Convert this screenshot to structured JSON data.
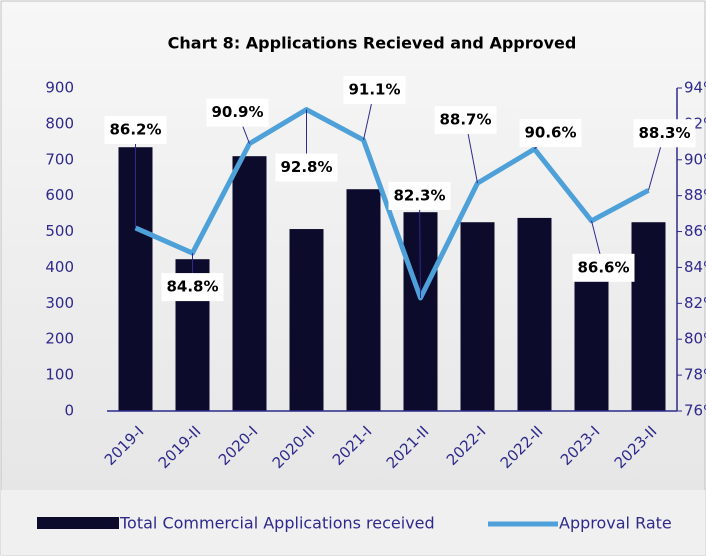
{
  "chart_data": {
    "type": "bar-line",
    "title": "Chart 8: Applications Recieved and Approved",
    "categories": [
      "2019-I",
      "2019-II",
      "2020-I",
      "2020-II",
      "2021-I",
      "2021-II",
      "2022-I",
      "2022-II",
      "2023-I",
      "2023-II"
    ],
    "series": [
      {
        "name": "Total Commercial Applications received",
        "type": "bar",
        "color": "#0d0b2b",
        "values": [
          735,
          423,
          710,
          507,
          618,
          554,
          526,
          538,
          426,
          526
        ]
      },
      {
        "name": "Approval Rate",
        "type": "line",
        "axis": "y2",
        "color": "#4ea0d8",
        "values": [
          86.2,
          84.8,
          90.9,
          92.8,
          91.1,
          82.3,
          88.7,
          90.6,
          86.6,
          88.3
        ],
        "value_labels": [
          "86.2%",
          "84.8%",
          "90.9%",
          "92.8%",
          "91.1%",
          "82.3%",
          "88.7%",
          "90.6%",
          "86.6%",
          "88.3%"
        ]
      }
    ],
    "ylim": [
      0,
      900
    ],
    "yticks": [
      0,
      100,
      200,
      300,
      400,
      500,
      600,
      700,
      800,
      900
    ],
    "y2lim": [
      76,
      94
    ],
    "y2ticks": [
      {
        "value": 76,
        "label": "76%"
      },
      {
        "value": 78,
        "label": "78%"
      },
      {
        "value": 80,
        "label": "80%"
      },
      {
        "value": 82,
        "label": "82%"
      },
      {
        "value": 84,
        "label": "84%"
      },
      {
        "value": 86,
        "label": "86%"
      },
      {
        "value": 88,
        "label": "88%"
      },
      {
        "value": 90,
        "label": "90%"
      },
      {
        "value": 92,
        "label": "92%"
      },
      {
        "value": 94,
        "label": "94%"
      }
    ],
    "legend": "bottom"
  }
}
